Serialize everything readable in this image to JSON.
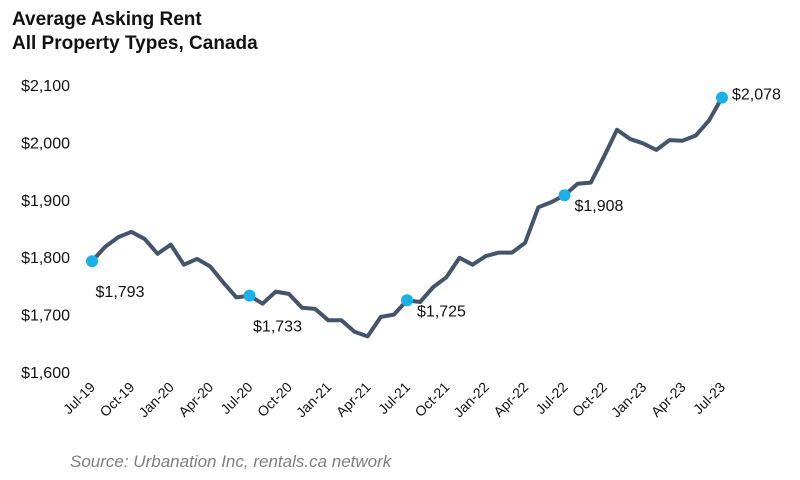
{
  "title": {
    "line1": "Average Asking Rent",
    "line2": "All Property Types, Canada"
  },
  "source": "Source: Urbanation Inc, rentals.ca network",
  "colors": {
    "line": "#44546a",
    "marker": "#1ab0e8",
    "text": "#111111",
    "source": "#7f7f7f"
  },
  "chart_data": {
    "type": "line",
    "grid": false,
    "legend": "none",
    "ylim": [
      1600,
      2100
    ],
    "yticks": [
      "$1,600",
      "$1,700",
      "$1,800",
      "$1,900",
      "$2,000",
      "$2,100"
    ],
    "ytick_values": [
      1600,
      1700,
      1800,
      1900,
      2000,
      2100
    ],
    "xtick_labels": [
      "Jul-19",
      "Oct-19",
      "Jan-20",
      "Apr-20",
      "Jul-20",
      "Oct-20",
      "Jan-21",
      "Apr-21",
      "Jul-21",
      "Oct-21",
      "Jan-22",
      "Apr-22",
      "Jul-22",
      "Oct-22",
      "Jan-23",
      "Apr-23",
      "Jul-23"
    ],
    "x": [
      "Jul-19",
      "Aug-19",
      "Sep-19",
      "Oct-19",
      "Nov-19",
      "Dec-19",
      "Jan-20",
      "Feb-20",
      "Mar-20",
      "Apr-20",
      "May-20",
      "Jun-20",
      "Jul-20",
      "Aug-20",
      "Sep-20",
      "Oct-20",
      "Nov-20",
      "Dec-20",
      "Jan-21",
      "Feb-21",
      "Mar-21",
      "Apr-21",
      "May-21",
      "Jun-21",
      "Jul-21",
      "Aug-21",
      "Sep-21",
      "Oct-21",
      "Nov-21",
      "Dec-21",
      "Jan-22",
      "Feb-22",
      "Mar-22",
      "Apr-22",
      "May-22",
      "Jun-22",
      "Jul-22",
      "Aug-22",
      "Sep-22",
      "Oct-22",
      "Nov-22",
      "Dec-22",
      "Jan-23",
      "Feb-23",
      "Mar-23",
      "Apr-23",
      "May-23",
      "Jun-23",
      "Jul-23"
    ],
    "values": [
      1793,
      1818,
      1835,
      1844,
      1832,
      1806,
      1822,
      1787,
      1797,
      1784,
      1756,
      1730,
      1733,
      1719,
      1740,
      1736,
      1712,
      1710,
      1690,
      1690,
      1670,
      1662,
      1696,
      1700,
      1725,
      1722,
      1748,
      1765,
      1799,
      1787,
      1802,
      1808,
      1808,
      1825,
      1887,
      1896,
      1908,
      1928,
      1930,
      1975,
      2022,
      2006,
      1998,
      1987,
      2004,
      2003,
      2012,
      2038,
      2078
    ],
    "highlights": [
      {
        "x": "Jul-19",
        "value": 1793,
        "label": "$1,793",
        "pos": "below"
      },
      {
        "x": "Jul-20",
        "value": 1733,
        "label": "$1,733",
        "pos": "below"
      },
      {
        "x": "Jul-21",
        "value": 1725,
        "label": "$1,725",
        "pos": "right"
      },
      {
        "x": "Jul-22",
        "value": 1908,
        "label": "$1,908",
        "pos": "right"
      },
      {
        "x": "Jul-23",
        "value": 2078,
        "label": "$2,078",
        "pos": "right"
      }
    ]
  }
}
